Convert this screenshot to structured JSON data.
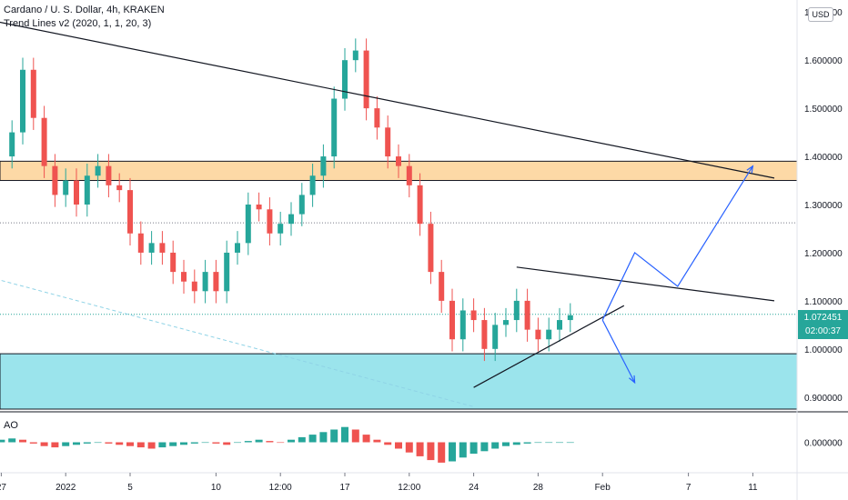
{
  "legend": {
    "symbol": "Cardano / U. S. Dollar, 4h, KRAKEN",
    "indicator": "Trend Lines v2 (2020, 1, 1, 20, 3)"
  },
  "ao_label": "AO",
  "currency": "USD",
  "last_price": {
    "value": "1.072451",
    "countdown": "02:00:37"
  },
  "colors": {
    "up": "#26a69a",
    "down": "#ef5350",
    "resistance_zone": "#fdd9a6",
    "support_zone": "#9be4ec",
    "arrow": "#2962ff",
    "trend": "#131722"
  },
  "chart_data": {
    "type": "candlestick",
    "ylim": [
      0.875,
      1.725
    ],
    "y_ticks": [
      "1.700000",
      "1.600000",
      "1.500000",
      "1.400000",
      "1.300000",
      "1.200000",
      "1.100000",
      "1.000000",
      "0.900000"
    ],
    "x_ticks": [
      "27",
      "2022",
      "5",
      "10",
      "12:00",
      "17",
      "12:00",
      "24",
      "28",
      "Feb",
      "7",
      "11"
    ],
    "x_tick_positions": [
      0,
      6,
      12,
      20,
      26,
      32,
      38,
      44,
      50,
      56,
      64,
      70
    ],
    "ao_tick": "0.000000",
    "price_series": [
      [
        0,
        1.4
      ],
      [
        1,
        1.45
      ],
      [
        2,
        1.58
      ],
      [
        3,
        1.48
      ],
      [
        4,
        1.38
      ],
      [
        5,
        1.32
      ],
      [
        6,
        1.35
      ],
      [
        7,
        1.3
      ],
      [
        8,
        1.36
      ],
      [
        9,
        1.38
      ],
      [
        10,
        1.34
      ],
      [
        11,
        1.33
      ],
      [
        12,
        1.24
      ],
      [
        13,
        1.2
      ],
      [
        14,
        1.22
      ],
      [
        15,
        1.2
      ],
      [
        16,
        1.16
      ],
      [
        17,
        1.14
      ],
      [
        18,
        1.12
      ],
      [
        19,
        1.16
      ],
      [
        20,
        1.12
      ],
      [
        21,
        1.2
      ],
      [
        22,
        1.22
      ],
      [
        23,
        1.3
      ],
      [
        24,
        1.29
      ],
      [
        25,
        1.24
      ],
      [
        26,
        1.26
      ],
      [
        27,
        1.28
      ],
      [
        28,
        1.32
      ],
      [
        29,
        1.36
      ],
      [
        30,
        1.4
      ],
      [
        31,
        1.52
      ],
      [
        32,
        1.6
      ],
      [
        33,
        1.62
      ],
      [
        34,
        1.5
      ],
      [
        35,
        1.46
      ],
      [
        36,
        1.4
      ],
      [
        37,
        1.38
      ],
      [
        38,
        1.34
      ],
      [
        39,
        1.26
      ],
      [
        40,
        1.16
      ],
      [
        41,
        1.1
      ],
      [
        42,
        1.02
      ],
      [
        43,
        1.08
      ],
      [
        44,
        1.06
      ],
      [
        45,
        1.0
      ],
      [
        46,
        1.05
      ],
      [
        47,
        1.06
      ],
      [
        48,
        1.1
      ],
      [
        49,
        1.04
      ],
      [
        50,
        1.02
      ],
      [
        51,
        1.04
      ],
      [
        52,
        1.06
      ],
      [
        53,
        1.07
      ]
    ],
    "zones": [
      {
        "name": "resistance",
        "from": 1.35,
        "to": 1.39
      },
      {
        "name": "support",
        "from": 0.875,
        "to": 0.99
      }
    ],
    "dotted_levels": [
      1.262,
      1.072
    ],
    "last_value": 1.072451,
    "trend_lines": [
      {
        "from": [
          -16,
          1.75
        ],
        "to": [
          72,
          1.355
        ]
      },
      {
        "from": [
          48,
          1.17
        ],
        "to": [
          72,
          1.1
        ]
      },
      {
        "from": [
          44,
          0.92
        ],
        "to": [
          58,
          1.09
        ]
      }
    ],
    "dashed_trend": {
      "from": [
        -8,
        1.19
      ],
      "to": [
        44,
        0.88
      ]
    },
    "projection_up": [
      [
        56,
        1.06
      ],
      [
        59,
        1.2
      ],
      [
        63,
        1.13
      ],
      [
        70,
        1.38
      ]
    ],
    "projection_down": [
      [
        56,
        1.06
      ],
      [
        59,
        0.93
      ]
    ],
    "ao_series": [
      0.02,
      0.03,
      0.02,
      -0.01,
      -0.03,
      -0.04,
      -0.03,
      -0.02,
      -0.01,
      0.0,
      -0.01,
      -0.02,
      -0.03,
      -0.04,
      -0.05,
      -0.04,
      -0.03,
      -0.02,
      -0.01,
      0.0,
      -0.01,
      -0.02,
      0.0,
      0.01,
      0.02,
      0.01,
      0.0,
      0.02,
      0.04,
      0.06,
      0.08,
      0.1,
      0.12,
      0.1,
      0.06,
      0.02,
      -0.02,
      -0.05,
      -0.08,
      -0.11,
      -0.14,
      -0.16,
      -0.15,
      -0.12,
      -0.09,
      -0.07,
      -0.05,
      -0.03,
      -0.02,
      -0.01,
      0.0,
      0.0,
      0.0,
      0.0
    ]
  }
}
